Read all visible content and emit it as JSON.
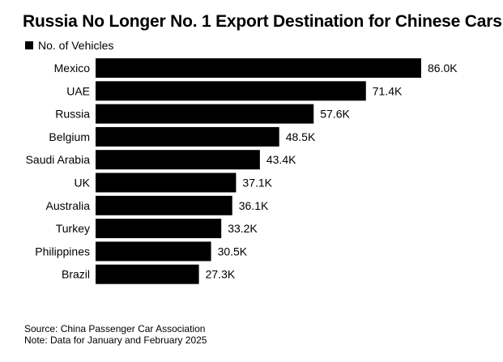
{
  "chart_data": {
    "type": "bar",
    "orientation": "horizontal",
    "title": "Russia No Longer No. 1 Export Destination for Chinese Cars",
    "legend": [
      "No. of Vehicles"
    ],
    "legend_position": "top-left",
    "categories": [
      "Mexico",
      "UAE",
      "Russia",
      "Belgium",
      "Saudi Arabia",
      "UK",
      "Australia",
      "Turkey",
      "Philippines",
      "Brazil"
    ],
    "series": [
      {
        "name": "No. of Vehicles",
        "values": [
          86.0,
          71.4,
          57.6,
          48.5,
          43.4,
          37.1,
          36.1,
          33.2,
          30.5,
          27.3
        ],
        "value_labels": [
          "86.0K",
          "71.4K",
          "57.6K",
          "48.5K",
          "43.4K",
          "37.1K",
          "36.1K",
          "33.2K",
          "30.5K",
          "27.3K"
        ],
        "color": "#000000"
      }
    ],
    "unit": "thousand vehicles",
    "xlim": [
      0,
      86.0
    ],
    "grid": false
  },
  "footnotes": {
    "source": "Source: China Passenger Car Association",
    "note": "Note: Data for January and February 2025"
  }
}
